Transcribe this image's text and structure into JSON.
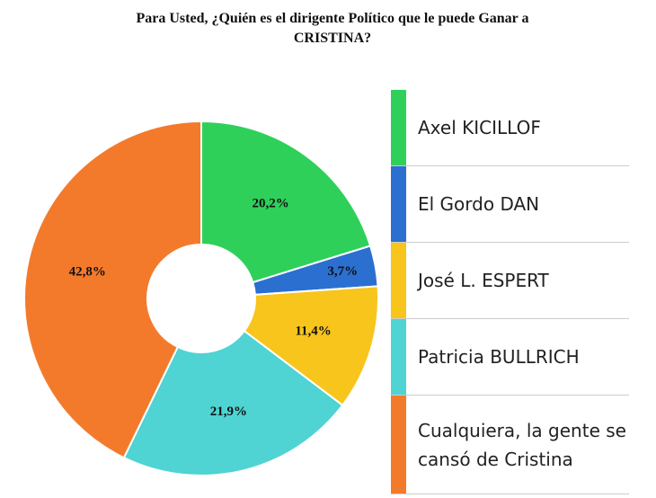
{
  "chart_data": {
    "type": "pie",
    "title": "Para Usted, ¿Quién es el dirigente Político que le puede Ganar a CRISTINA?",
    "categories": [
      "Axel KICILLOF",
      "El Gordo DAN",
      "José L. ESPERT",
      "Patricia BULLRICH",
      "Cualquiera, la gente se cansó de Cristina"
    ],
    "values": [
      20.2,
      3.7,
      11.4,
      21.9,
      42.8
    ],
    "value_labels": [
      "20,2%",
      "3,7%",
      "11,4%",
      "21,9%",
      "42,8%"
    ],
    "colors": [
      "#2fd05a",
      "#2b6fd1",
      "#f7c51b",
      "#4fd3d3",
      "#f47a2b"
    ],
    "donut": true,
    "legend": "right"
  }
}
